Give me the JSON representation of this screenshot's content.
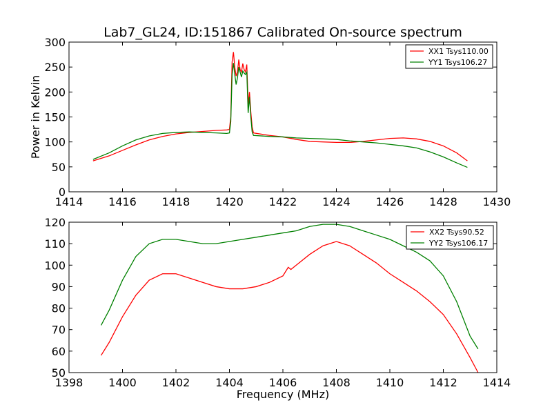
{
  "chart_data": [
    {
      "type": "line",
      "title": "Lab7_GL24, ID:151867 Calibrated On-source spectrum",
      "xlabel": "",
      "ylabel": "Power in Kelvin",
      "xlim": [
        1414,
        1430
      ],
      "ylim": [
        0,
        300
      ],
      "xticks": [
        "1414",
        "1416",
        "1418",
        "1420",
        "1422",
        "1424",
        "1426",
        "1428",
        "1430"
      ],
      "yticks": [
        "0",
        "50",
        "100",
        "150",
        "200",
        "250",
        "300"
      ],
      "legend_position": "top-right",
      "series": [
        {
          "name": "XX1 Tsys110.00",
          "color": "#ff0000",
          "points": [
            [
              1414.9,
              62
            ],
            [
              1415.5,
              72
            ],
            [
              1416.0,
              83
            ],
            [
              1416.5,
              94
            ],
            [
              1417.0,
              104
            ],
            [
              1417.5,
              111
            ],
            [
              1418.0,
              116
            ],
            [
              1418.5,
              119
            ],
            [
              1419.0,
              121
            ],
            [
              1419.5,
              123
            ],
            [
              1419.9,
              124
            ],
            [
              1420.0,
              125
            ],
            [
              1420.05,
              150
            ],
            [
              1420.1,
              260
            ],
            [
              1420.15,
              280
            ],
            [
              1420.2,
              250
            ],
            [
              1420.25,
              232
            ],
            [
              1420.3,
              240
            ],
            [
              1420.35,
              265
            ],
            [
              1420.4,
              245
            ],
            [
              1420.45,
              240
            ],
            [
              1420.5,
              257
            ],
            [
              1420.55,
              245
            ],
            [
              1420.6,
              240
            ],
            [
              1420.65,
              255
            ],
            [
              1420.7,
              175
            ],
            [
              1420.75,
              200
            ],
            [
              1420.8,
              160
            ],
            [
              1420.85,
              130
            ],
            [
              1420.9,
              118
            ],
            [
              1421.5,
              113
            ],
            [
              1422.0,
              110
            ],
            [
              1422.5,
              105
            ],
            [
              1423.0,
              101
            ],
            [
              1423.5,
              100
            ],
            [
              1424.0,
              99
            ],
            [
              1424.5,
              99
            ],
            [
              1425.0,
              101
            ],
            [
              1425.5,
              104
            ],
            [
              1426.0,
              107
            ],
            [
              1426.5,
              108
            ],
            [
              1427.0,
              106
            ],
            [
              1427.5,
              101
            ],
            [
              1428.0,
              92
            ],
            [
              1428.5,
              78
            ],
            [
              1428.9,
              62
            ]
          ]
        },
        {
          "name": "YY1 Tsys106.27",
          "color": "#008000",
          "points": [
            [
              1414.9,
              65
            ],
            [
              1415.5,
              78
            ],
            [
              1416.0,
              92
            ],
            [
              1416.5,
              104
            ],
            [
              1417.0,
              112
            ],
            [
              1417.5,
              117
            ],
            [
              1418.0,
              119
            ],
            [
              1418.5,
              120
            ],
            [
              1419.0,
              119
            ],
            [
              1419.5,
              118
            ],
            [
              1419.9,
              117
            ],
            [
              1420.0,
              118
            ],
            [
              1420.05,
              140
            ],
            [
              1420.1,
              235
            ],
            [
              1420.15,
              258
            ],
            [
              1420.2,
              235
            ],
            [
              1420.25,
              215
            ],
            [
              1420.3,
              228
            ],
            [
              1420.35,
              250
            ],
            [
              1420.4,
              240
            ],
            [
              1420.45,
              230
            ],
            [
              1420.5,
              242
            ],
            [
              1420.55,
              238
            ],
            [
              1420.6,
              235
            ],
            [
              1420.65,
              240
            ],
            [
              1420.7,
              158
            ],
            [
              1420.75,
              190
            ],
            [
              1420.8,
              150
            ],
            [
              1420.85,
              120
            ],
            [
              1420.9,
              113
            ],
            [
              1421.5,
              111
            ],
            [
              1422.0,
              110
            ],
            [
              1422.5,
              108
            ],
            [
              1423.0,
              107
            ],
            [
              1423.5,
              106
            ],
            [
              1424.0,
              105
            ],
            [
              1424.5,
              102
            ],
            [
              1425.0,
              100
            ],
            [
              1425.5,
              98
            ],
            [
              1426.0,
              95
            ],
            [
              1426.5,
              92
            ],
            [
              1427.0,
              88
            ],
            [
              1427.5,
              80
            ],
            [
              1428.0,
              70
            ],
            [
              1428.5,
              58
            ],
            [
              1428.9,
              49
            ]
          ]
        }
      ]
    },
    {
      "type": "line",
      "title": "",
      "xlabel": "Frequency (MHz)",
      "ylabel": "",
      "xlim": [
        1398,
        1414
      ],
      "ylim": [
        50,
        120
      ],
      "xticks": [
        "1398",
        "1400",
        "1402",
        "1404",
        "1406",
        "1408",
        "1410",
        "1412",
        "1414"
      ],
      "yticks": [
        "50",
        "60",
        "70",
        "80",
        "90",
        "100",
        "110",
        "120"
      ],
      "legend_position": "top-right",
      "series": [
        {
          "name": "XX2 Tsys90.52",
          "color": "#ff0000",
          "points": [
            [
              1399.2,
              58
            ],
            [
              1399.5,
              64
            ],
            [
              1400.0,
              76
            ],
            [
              1400.5,
              86
            ],
            [
              1401.0,
              93
            ],
            [
              1401.5,
              96
            ],
            [
              1402.0,
              96
            ],
            [
              1402.5,
              94
            ],
            [
              1403.0,
              92
            ],
            [
              1403.5,
              90
            ],
            [
              1404.0,
              89
            ],
            [
              1404.5,
              89
            ],
            [
              1405.0,
              90
            ],
            [
              1405.5,
              92
            ],
            [
              1406.0,
              95
            ],
            [
              1406.2,
              99
            ],
            [
              1406.3,
              98
            ],
            [
              1406.5,
              100
            ],
            [
              1407.0,
              105
            ],
            [
              1407.5,
              109
            ],
            [
              1408.0,
              111
            ],
            [
              1408.5,
              109
            ],
            [
              1409.0,
              105
            ],
            [
              1409.5,
              101
            ],
            [
              1410.0,
              96
            ],
            [
              1410.5,
              92
            ],
            [
              1411.0,
              88
            ],
            [
              1411.5,
              83
            ],
            [
              1412.0,
              77
            ],
            [
              1412.5,
              68
            ],
            [
              1413.0,
              57
            ],
            [
              1413.3,
              50
            ]
          ]
        },
        {
          "name": "YY2 Tsys106.17",
          "color": "#008000",
          "points": [
            [
              1399.2,
              72
            ],
            [
              1399.5,
              79
            ],
            [
              1400.0,
              93
            ],
            [
              1400.5,
              104
            ],
            [
              1401.0,
              110
            ],
            [
              1401.5,
              112
            ],
            [
              1402.0,
              112
            ],
            [
              1402.5,
              111
            ],
            [
              1403.0,
              110
            ],
            [
              1403.5,
              110
            ],
            [
              1404.0,
              111
            ],
            [
              1404.5,
              112
            ],
            [
              1405.0,
              113
            ],
            [
              1405.5,
              114
            ],
            [
              1406.0,
              115
            ],
            [
              1406.5,
              116
            ],
            [
              1407.0,
              118
            ],
            [
              1407.5,
              119
            ],
            [
              1408.0,
              119
            ],
            [
              1408.5,
              118
            ],
            [
              1409.0,
              116
            ],
            [
              1409.5,
              114
            ],
            [
              1410.0,
              112
            ],
            [
              1410.5,
              109
            ],
            [
              1411.0,
              106
            ],
            [
              1411.5,
              102
            ],
            [
              1412.0,
              95
            ],
            [
              1412.5,
              83
            ],
            [
              1413.0,
              67
            ],
            [
              1413.3,
              61
            ]
          ]
        }
      ]
    }
  ]
}
